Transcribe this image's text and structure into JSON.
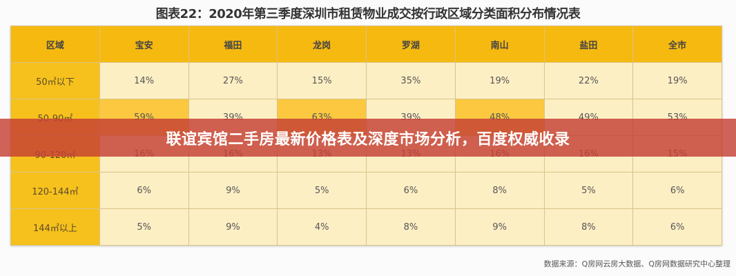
{
  "title": "图表22：2020年第三季度深圳市租赁物业成交按行政区域分类面积分布情况表",
  "table": {
    "headers": [
      "区域",
      "宝安",
      "福田",
      "龙岗",
      "罗湖",
      "南山",
      "盐田",
      "全市"
    ],
    "rows": [
      {
        "label": "50㎡以下",
        "values": [
          "14%",
          "27%",
          "15%",
          "35%",
          "19%",
          "22%",
          "19%"
        ]
      },
      {
        "label": "50-90㎡",
        "values": [
          "59%",
          "39%",
          "63%",
          "39%",
          "48%",
          "49%",
          "53%"
        ]
      },
      {
        "label": "90-120㎡",
        "values": [
          "16%",
          "16%",
          "13%",
          "13%",
          "16%",
          "16%",
          "15%"
        ]
      },
      {
        "label": "120-144㎡",
        "values": [
          "6%",
          "9%",
          "5%",
          "6%",
          "8%",
          "5%",
          "6%"
        ]
      },
      {
        "label": "144㎡以上",
        "values": [
          "5%",
          "9%",
          "4%",
          "8%",
          "9%",
          "8%",
          "6%"
        ]
      }
    ]
  },
  "source": "数据来源：Q房网云房大数据、Q房网数据研究中心整理",
  "banner": "联谊宾馆二手房最新价格表及深度市场分析，百度权威收录",
  "colors": {
    "header": "#f6b90f",
    "row_header": "#f7c11d",
    "cell": "#fdefc4",
    "highlight": "#fbc840",
    "banner": "#c44034"
  }
}
